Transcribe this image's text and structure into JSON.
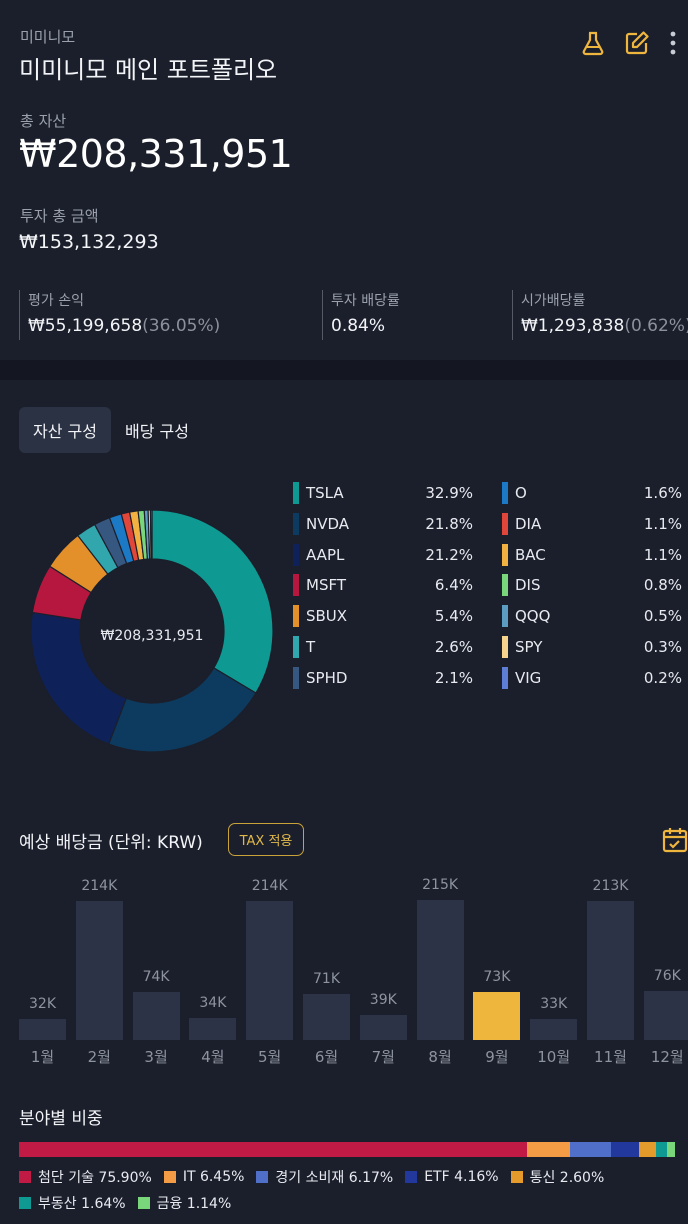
{
  "header": {
    "subtitle": "미미니모",
    "title": "미미니모 메인 포트폴리오",
    "icons": [
      "flask-icon",
      "edit-icon",
      "more-vertical-icon"
    ],
    "total_assets_label": "총 자산",
    "total_assets": "₩208,331,951",
    "invest_total_label": "투자 총 금액",
    "invest_total": "₩153,132,293",
    "stats": [
      {
        "label": "평가 손익",
        "value": "₩55,199,658",
        "sub": "(36.05%)"
      },
      {
        "label": "투자 배당률",
        "value": "0.84%",
        "sub": ""
      },
      {
        "label": "시가배당률",
        "value": "₩1,293,838",
        "sub": "(0.62%)"
      }
    ]
  },
  "tabs": [
    {
      "label": "자산 구성",
      "active": true
    },
    {
      "label": "배당 구성",
      "active": false
    }
  ],
  "colors": {
    "accent": "#efb63e",
    "bar": "#2c3346",
    "background": "#1b1f2b"
  },
  "allocation": {
    "center_label": "₩208,331,951",
    "items": [
      {
        "name": "TSLA",
        "pct": "32.9%",
        "value": 32.9,
        "color": "#0e9a93"
      },
      {
        "name": "NVDA",
        "pct": "21.8%",
        "value": 21.8,
        "color": "#0d3b5f"
      },
      {
        "name": "AAPL",
        "pct": "21.2%",
        "value": 21.2,
        "color": "#0e2259"
      },
      {
        "name": "MSFT",
        "pct": "6.4%",
        "value": 6.4,
        "color": "#b5173f"
      },
      {
        "name": "SBUX",
        "pct": "5.4%",
        "value": 5.4,
        "color": "#e3902a"
      },
      {
        "name": "T",
        "pct": "2.6%",
        "value": 2.6,
        "color": "#31a7ad"
      },
      {
        "name": "SPHD",
        "pct": "2.1%",
        "value": 2.1,
        "color": "#36577f"
      },
      {
        "name": "O",
        "pct": "1.6%",
        "value": 1.6,
        "color": "#1c79c6"
      },
      {
        "name": "DIA",
        "pct": "1.1%",
        "value": 1.1,
        "color": "#e0473a"
      },
      {
        "name": "BAC",
        "pct": "1.1%",
        "value": 1.1,
        "color": "#f2b141"
      },
      {
        "name": "DIS",
        "pct": "0.8%",
        "value": 0.8,
        "color": "#79d67a"
      },
      {
        "name": "QQQ",
        "pct": "0.5%",
        "value": 0.5,
        "color": "#5c9ec2"
      },
      {
        "name": "SPY",
        "pct": "0.3%",
        "value": 0.3,
        "color": "#f7d48e"
      },
      {
        "name": "VIG",
        "pct": "0.2%",
        "value": 0.2,
        "color": "#5e7dd4"
      }
    ]
  },
  "dividends": {
    "title": "예상 배당금 (단위: KRW)",
    "tax_button": "TAX 적용",
    "calendar_icon": "calendar-check-icon",
    "months": [
      {
        "month": "1월",
        "label": "32K",
        "value": 32
      },
      {
        "month": "2월",
        "label": "214K",
        "value": 214
      },
      {
        "month": "3월",
        "label": "74K",
        "value": 74
      },
      {
        "month": "4월",
        "label": "34K",
        "value": 34
      },
      {
        "month": "5월",
        "label": "214K",
        "value": 214
      },
      {
        "month": "6월",
        "label": "71K",
        "value": 71
      },
      {
        "month": "7월",
        "label": "39K",
        "value": 39
      },
      {
        "month": "8월",
        "label": "215K",
        "value": 215
      },
      {
        "month": "9월",
        "label": "73K",
        "value": 73,
        "highlight": true
      },
      {
        "month": "10월",
        "label": "33K",
        "value": 33
      },
      {
        "month": "11월",
        "label": "213K",
        "value": 213
      },
      {
        "month": "12월",
        "label": "76K",
        "value": 76
      }
    ]
  },
  "sectors": {
    "title": "분야별 비중",
    "items": [
      {
        "label": "첨단 기술 75.90%",
        "value": 75.9,
        "color": "#c01a45"
      },
      {
        "label": "IT 6.45%",
        "value": 6.45,
        "color": "#f39c45"
      },
      {
        "label": "경기 소비재 6.17%",
        "value": 6.17,
        "color": "#4f6fc8"
      },
      {
        "label": "ETF 4.16%",
        "value": 4.16,
        "color": "#23389c"
      },
      {
        "label": "통신 2.60%",
        "value": 2.6,
        "color": "#e59a2c"
      },
      {
        "label": "부동산 1.64%",
        "value": 1.64,
        "color": "#0e9a93"
      },
      {
        "label": "금융 1.14%",
        "value": 1.14,
        "color": "#79d67a"
      }
    ]
  },
  "chart_data": [
    {
      "type": "pie",
      "categories": [
        "TSLA",
        "NVDA",
        "AAPL",
        "MSFT",
        "SBUX",
        "T",
        "SPHD",
        "O",
        "DIA",
        "BAC",
        "DIS",
        "QQQ",
        "SPY",
        "VIG"
      ],
      "values": [
        32.9,
        21.8,
        21.2,
        6.4,
        5.4,
        2.6,
        2.1,
        1.6,
        1.1,
        1.1,
        0.8,
        0.5,
        0.3,
        0.2
      ],
      "title": ""
    },
    {
      "type": "bar",
      "categories": [
        "1월",
        "2월",
        "3월",
        "4월",
        "5월",
        "6월",
        "7월",
        "8월",
        "9월",
        "10월",
        "11월",
        "12월"
      ],
      "values": [
        32,
        214,
        74,
        34,
        214,
        71,
        39,
        215,
        73,
        33,
        213,
        76
      ],
      "title": "예상 배당금 (단위: KRW)",
      "ylabel": "",
      "grid": false
    }
  ]
}
